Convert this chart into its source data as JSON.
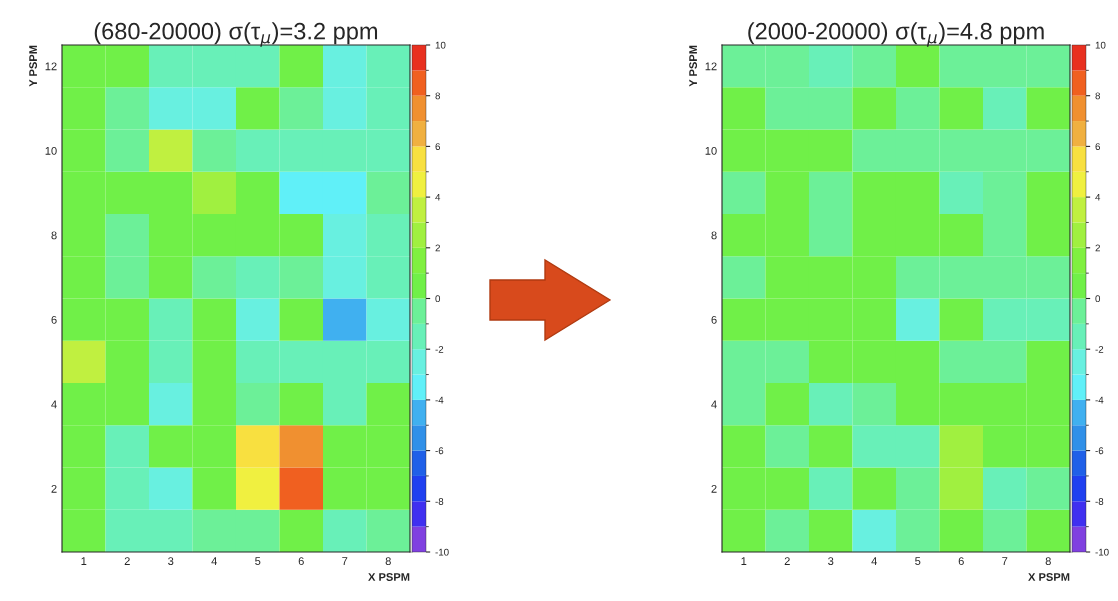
{
  "chart_data": [
    {
      "type": "heatmap",
      "title": "(680-20000) σ(τ$_{μ}$)=3.2 ppm",
      "xlabel": "X PSPM",
      "ylabel": "Y PSPM",
      "categories": [
        "1",
        "2",
        "3",
        "4",
        "5",
        "6",
        "7",
        "8"
      ],
      "y_categories": [
        "12",
        null,
        "10",
        null,
        "8",
        null,
        "6",
        null,
        "4",
        null,
        "2",
        null
      ],
      "cells": [
        [
          0.5,
          0.5,
          -1.5,
          -1.5,
          -1.5,
          0.5,
          -2.5,
          -1.5
        ],
        [
          0.5,
          -0.5,
          -2.5,
          -2.5,
          0.5,
          -0.5,
          -2.5,
          -1.5
        ],
        [
          0.5,
          -0.5,
          3.5,
          -0.5,
          -1.5,
          -1.5,
          -1.5,
          -1.5
        ],
        [
          0.5,
          0.5,
          0.5,
          2.5,
          0.5,
          -3.5,
          -3.5,
          -0.5
        ],
        [
          0.5,
          -0.5,
          0.5,
          0.5,
          0.5,
          0.5,
          -2.5,
          -1.5
        ],
        [
          0.5,
          -0.5,
          0.5,
          -0.5,
          -1.5,
          -0.5,
          -2.5,
          -1.5
        ],
        [
          0.5,
          0.5,
          -1.5,
          0.5,
          -2.5,
          0.5,
          -4.5,
          -2.5
        ],
        [
          3.5,
          0.5,
          -1.5,
          0.5,
          -1.5,
          -1.5,
          -1.5,
          -1.5
        ],
        [
          0.5,
          0.5,
          -2.5,
          0.5,
          -0.5,
          0.5,
          -1.5,
          0.5
        ],
        [
          0.5,
          -1.5,
          0.5,
          0.5,
          5.5,
          7.5,
          0.5,
          0.5
        ],
        [
          0.5,
          -1.5,
          -2.5,
          0.5,
          4.5,
          8.5,
          0.5,
          0.5
        ],
        [
          0.5,
          -1.5,
          -1.5,
          -0.5,
          -0.5,
          0.5,
          -1.5,
          -0.5
        ]
      ],
      "clim": [
        -10,
        10
      ],
      "cticks": [
        -10,
        -8,
        -6,
        -4,
        -2,
        0,
        2,
        4,
        6,
        8,
        10
      ],
      "colors": [
        "#8040e0",
        "#4030f0",
        "#2040f0",
        "#2060e8",
        "#3090e8",
        "#40b0f0",
        "#60f0f8",
        "#68f0e0",
        "#68f0b8",
        "#6cf098",
        "#70f048",
        "#80f040",
        "#a0f040",
        "#c0f040",
        "#f0f040",
        "#f8e040",
        "#f0b040",
        "#f09030",
        "#f06020",
        "#e83020"
      ]
    },
    {
      "type": "heatmap",
      "title": "(2000-20000) σ(τ$_{μ}$)=4.8 ppm",
      "xlabel": "X PSPM",
      "ylabel": "Y PSPM",
      "categories": [
        "1",
        "2",
        "3",
        "4",
        "5",
        "6",
        "7",
        "8"
      ],
      "y_categories": [
        "12",
        null,
        "10",
        null,
        "8",
        null,
        "6",
        null,
        "4",
        null,
        "2",
        null
      ],
      "cells": [
        [
          -0.5,
          -0.5,
          -1.5,
          -0.5,
          0.5,
          -0.5,
          -0.5,
          -0.5
        ],
        [
          0.5,
          -0.5,
          -0.5,
          0.5,
          -0.5,
          0.5,
          -1.5,
          0.5
        ],
        [
          0.5,
          0.5,
          0.5,
          -0.5,
          -0.5,
          -0.5,
          -0.5,
          -0.5
        ],
        [
          -0.5,
          0.5,
          -0.5,
          0.5,
          0.5,
          -1.5,
          -0.5,
          0.5
        ],
        [
          0.5,
          0.5,
          -0.5,
          0.5,
          0.5,
          0.5,
          -0.5,
          0.5
        ],
        [
          -0.5,
          0.5,
          0.5,
          0.5,
          -0.5,
          -0.5,
          -0.5,
          -0.5
        ],
        [
          0.5,
          0.5,
          0.5,
          0.5,
          -2.5,
          0.5,
          -1.5,
          -1.5
        ],
        [
          -0.5,
          -0.5,
          0.5,
          0.5,
          0.5,
          -0.5,
          -0.5,
          0.5
        ],
        [
          -0.5,
          0.5,
          -1.5,
          -0.5,
          0.5,
          0.5,
          0.5,
          0.5
        ],
        [
          0.5,
          -0.5,
          0.5,
          -1.5,
          -1.5,
          2.5,
          0.5,
          0.5
        ],
        [
          0.5,
          0.5,
          -1.5,
          0.5,
          -0.5,
          2.5,
          -1.5,
          -0.5
        ],
        [
          0.5,
          -0.5,
          0.5,
          -2.5,
          -0.5,
          0.5,
          -0.5,
          0.5
        ]
      ],
      "clim": [
        -10,
        10
      ],
      "cticks": [
        -10,
        -8,
        -6,
        -4,
        -2,
        0,
        2,
        4,
        6,
        8,
        10
      ],
      "colors": [
        "#8040e0",
        "#4030f0",
        "#2040f0",
        "#2060e8",
        "#3090e8",
        "#40b0f0",
        "#60f0f8",
        "#68f0e0",
        "#68f0b8",
        "#6cf098",
        "#70f048",
        "#80f040",
        "#a0f040",
        "#c0f040",
        "#f0f040",
        "#f8e040",
        "#f0b040",
        "#f09030",
        "#f06020",
        "#e83020"
      ]
    }
  ]
}
